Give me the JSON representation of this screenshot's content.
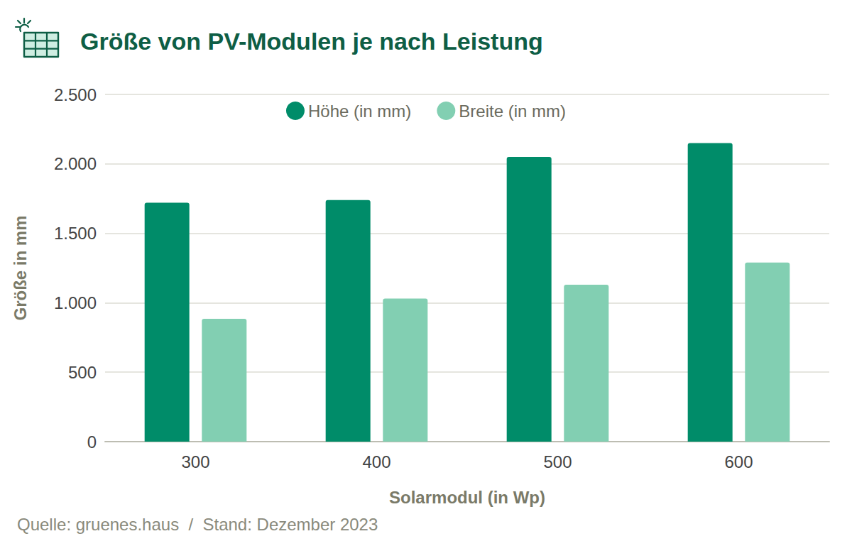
{
  "chart_data": {
    "type": "bar",
    "title": "Größe von PV-Modulen je nach Leistung",
    "x_label": "Solarmodul (in Wp)",
    "y_label": "Größe in mm",
    "source": "Quelle: gruenes.haus  /  Stand: Dezember 2023",
    "categories": [
      "300",
      "400",
      "500",
      "600"
    ],
    "series": [
      {
        "name": "Höhe (in mm)",
        "color": "#008c69",
        "values": [
          1720,
          1740,
          2050,
          2150
        ]
      },
      {
        "name": "Breite (in mm)",
        "color": "#82cfb2",
        "values": [
          885,
          1030,
          1130,
          1290
        ]
      }
    ],
    "ylim": [
      0,
      2500
    ],
    "yticks": [
      0,
      500,
      {
        "value": 1000,
        "label": "1.000"
      },
      {
        "value": 1500,
        "label": "1.500"
      },
      {
        "value": 2000,
        "label": "2.000"
      },
      {
        "value": 2500,
        "label": "2.500"
      }
    ],
    "grid": true,
    "legend": "top"
  }
}
